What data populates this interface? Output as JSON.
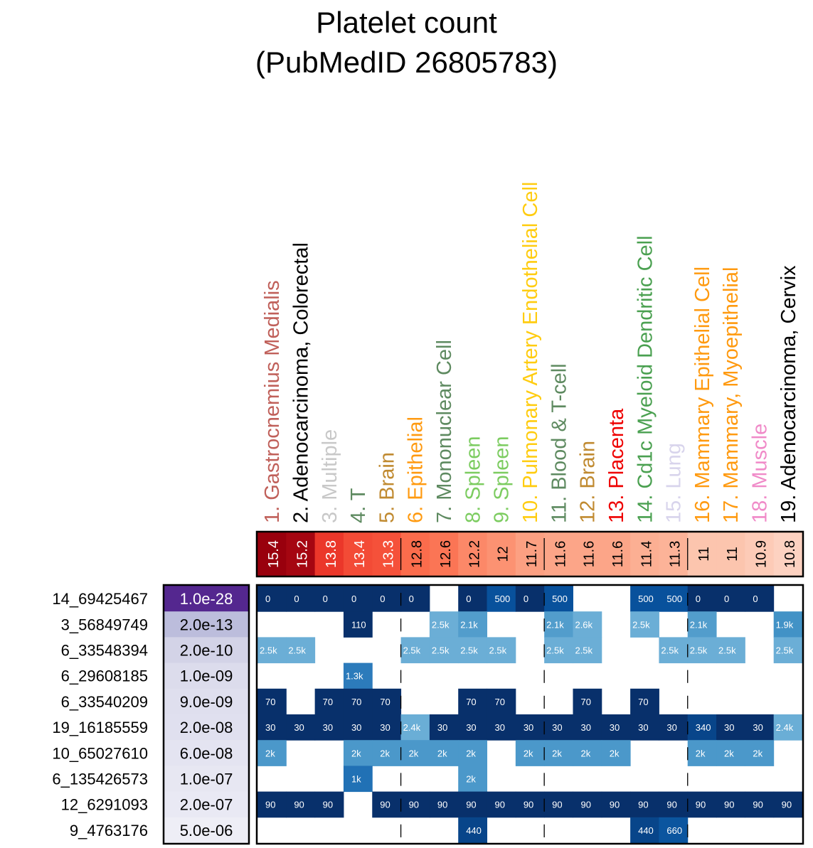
{
  "chart_data": {
    "type": "heatmap",
    "title": [
      "Platelet count",
      "(PubMedID 26805783)"
    ],
    "columns": [
      {
        "label": "1. Gastrocnemius Medialis",
        "color": "#c0605a",
        "score": "15.4"
      },
      {
        "label": "2. Adenocarcinoma, Colorectal",
        "color": "#000000",
        "score": "15.2"
      },
      {
        "label": "3. Multiple",
        "color": "#c8c8c8",
        "score": "13.8"
      },
      {
        "label": "4. T",
        "color": "#5e8a60",
        "score": "13.4"
      },
      {
        "label": "5. Brain",
        "color": "#c08a30",
        "score": "13.3"
      },
      {
        "label": "6. Epithelial",
        "color": "#ff9a10",
        "score": "12.8"
      },
      {
        "label": "7. Mononuclear Cell",
        "color": "#5e8a60",
        "score": "12.6"
      },
      {
        "label": "8. Spleen",
        "color": "#7ccc60",
        "score": "12.2"
      },
      {
        "label": "9. Spleen",
        "color": "#7ccc60",
        "score": "12"
      },
      {
        "label": "10. Pulmonary Artery Endothelial Cell",
        "color": "#ffcc10",
        "score": "11.7"
      },
      {
        "label": "11. Blood & T-cell",
        "color": "#5e8a60",
        "score": "11.6"
      },
      {
        "label": "12. Brain",
        "color": "#c08a30",
        "score": "11.6"
      },
      {
        "label": "13. Placenta",
        "color": "#ee0000",
        "score": "11.6"
      },
      {
        "label": "14. Cd1c Myeloid Dendritic Cell",
        "color": "#4aa050",
        "score": "11.4"
      },
      {
        "label": "15. Lung",
        "color": "#d8d4ec",
        "score": "11.3"
      },
      {
        "label": "16. Mammary Epithelial Cell",
        "color": "#ff9a10",
        "score": "11"
      },
      {
        "label": "17. Mammary, Myoepithelial",
        "color": "#ff9a10",
        "score": "11"
      },
      {
        "label": "18. Muscle",
        "color": "#f08ac8",
        "score": "10.9"
      },
      {
        "label": "19. Adenocarcinoma, Cervix",
        "color": "#000000",
        "score": "10.8"
      }
    ],
    "column_group_dividers_after": [
      5,
      10,
      15
    ],
    "rows": [
      {
        "snp": "14_69425467",
        "pvalue": "1.0e-28",
        "cells": [
          "0",
          "0",
          "0",
          "0",
          "0",
          "0",
          "",
          "0",
          "500",
          "0",
          "500",
          "",
          "",
          "500",
          "500",
          "0",
          "0",
          "0",
          ""
        ]
      },
      {
        "snp": "3_56849749",
        "pvalue": "2.0e-13",
        "cells": [
          "",
          "",
          "",
          "110",
          "",
          "",
          "2.5k",
          "2.1k",
          "",
          "",
          "2.1k",
          "2.6k",
          "",
          "2.5k",
          "",
          "2.1k",
          "",
          "",
          "1.9k"
        ]
      },
      {
        "snp": "6_33548394",
        "pvalue": "2.0e-10",
        "cells": [
          "2.5k",
          "2.5k",
          "",
          "",
          "",
          "2.5k",
          "2.5k",
          "2.5k",
          "2.5k",
          "",
          "2.5k",
          "2.5k",
          "",
          "",
          "2.5k",
          "2.5k",
          "2.5k",
          "",
          "2.5k"
        ]
      },
      {
        "snp": "6_29608185",
        "pvalue": "1.0e-09",
        "cells": [
          "",
          "",
          "",
          "1.3k",
          "",
          "",
          "",
          "",
          "",
          "",
          "",
          "",
          "",
          "",
          "",
          "",
          "",
          "",
          ""
        ]
      },
      {
        "snp": "6_33540209",
        "pvalue": "9.0e-09",
        "cells": [
          "70",
          "",
          "70",
          "70",
          "70",
          "",
          "",
          "70",
          "70",
          "",
          "",
          "70",
          "",
          "70",
          "",
          "",
          "",
          "",
          ""
        ]
      },
      {
        "snp": "19_16185559",
        "pvalue": "2.0e-08",
        "cells": [
          "30",
          "30",
          "30",
          "30",
          "30",
          "2.4k",
          "30",
          "30",
          "30",
          "30",
          "30",
          "30",
          "30",
          "30",
          "30",
          "340",
          "30",
          "30",
          "2.4k"
        ]
      },
      {
        "snp": "10_65027610",
        "pvalue": "6.0e-08",
        "cells": [
          "2k",
          "",
          "",
          "2k",
          "2k",
          "2k",
          "2k",
          "2k",
          "",
          "2k",
          "2k",
          "2k",
          "2k",
          "",
          "",
          "2k",
          "2k",
          "2k",
          ""
        ]
      },
      {
        "snp": "6_135426573",
        "pvalue": "1.0e-07",
        "cells": [
          "",
          "",
          "",
          "1k",
          "",
          "",
          "",
          "2k",
          "",
          "",
          "",
          "",
          "",
          "",
          "",
          "",
          "",
          "",
          ""
        ]
      },
      {
        "snp": "12_6291093",
        "pvalue": "2.0e-07",
        "cells": [
          "90",
          "90",
          "90",
          "",
          "90",
          "90",
          "90",
          "90",
          "90",
          "90",
          "90",
          "90",
          "90",
          "90",
          "90",
          "90",
          "90",
          "90",
          "90"
        ]
      },
      {
        "snp": "9_4763176",
        "pvalue": "5.0e-06",
        "cells": [
          "",
          "",
          "",
          "",
          "",
          "",
          "",
          "440",
          "",
          "",
          "",
          "",
          "",
          "440",
          "660",
          "",
          "",
          "",
          ""
        ]
      }
    ]
  }
}
